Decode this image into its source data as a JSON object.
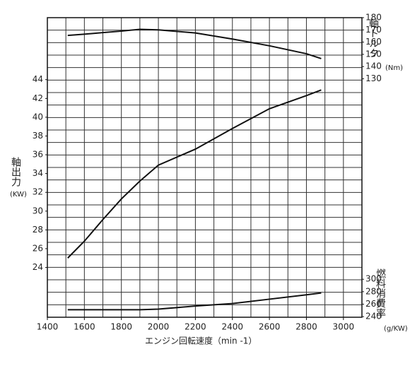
{
  "chart_data": {
    "type": "line",
    "x_label": "エンジン回転速度（min -1）",
    "y_label": "軸出力",
    "y_unit": "(KW)",
    "y2_label": "軸トルク",
    "y2_unit": "(Nm)",
    "y3_label": "燃料消費率",
    "y3_unit": "(g/KW)",
    "x": [
      1510,
      1600,
      1700,
      1800,
      1900,
      2000,
      2200,
      2400,
      2600,
      2800,
      2880
    ],
    "xlim": [
      1400,
      3100
    ],
    "xticks": [
      1400,
      1600,
      1800,
      2000,
      2200,
      2400,
      2600,
      2800,
      3000
    ],
    "ylim": [
      18.7,
      50.6
    ],
    "yticks": [
      24,
      26,
      28,
      30,
      32,
      34,
      36,
      38,
      40,
      42,
      44
    ],
    "y2lim": [
      -65,
      180
    ],
    "y2ticks": [
      130,
      140,
      150,
      160,
      170,
      180
    ],
    "y3lim": [
      239,
      720
    ],
    "y3ticks": [
      240,
      260,
      280,
      300
    ],
    "grid": true,
    "series": [
      {
        "name": "軸出力",
        "axis": "y",
        "color": "#111",
        "values": [
          25.0,
          26.8,
          29.1,
          31.3,
          33.2,
          34.9,
          36.6,
          38.8,
          40.9,
          42.3,
          42.9
        ]
      },
      {
        "name": "軸トルク",
        "axis": "y2",
        "color": "#111",
        "values": [
          165.5,
          166.5,
          167.8,
          169,
          170.5,
          170,
          167.5,
          162.5,
          157,
          150.5,
          146.5
        ]
      },
      {
        "name": "燃料消費率",
        "axis": "y3",
        "color": "#111",
        "values": [
          251,
          251,
          251,
          251,
          251,
          252,
          257,
          261,
          268,
          275,
          278
        ]
      }
    ]
  }
}
